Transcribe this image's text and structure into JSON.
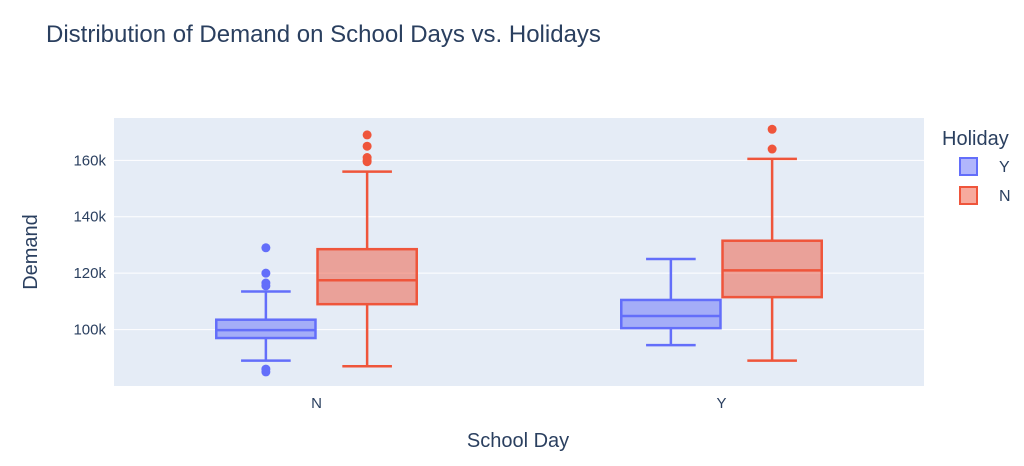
{
  "chart_data": {
    "type": "box",
    "title": "Distribution of Demand on School Days vs. Holidays",
    "xlabel": "School Day",
    "ylabel": "Demand",
    "categories": [
      "N",
      "Y"
    ],
    "ylim": [
      80000,
      175000
    ],
    "yticks": [
      100000,
      120000,
      140000,
      160000
    ],
    "ytick_labels": [
      "100k",
      "120k",
      "140k",
      "160k"
    ],
    "grid": true,
    "legend": {
      "title": "Holiday",
      "placement": "right"
    },
    "series": [
      {
        "name": "Y",
        "color": "#636efa",
        "boxes": [
          {
            "category": "N",
            "min": 89000,
            "q1": 97000,
            "median": 99800,
            "q3": 103500,
            "max": 113500,
            "outliers": [
              85000,
              86000,
              115500,
              116500,
              120000,
              129000
            ]
          },
          {
            "category": "Y",
            "min": 94500,
            "q1": 100500,
            "median": 104800,
            "q3": 110500,
            "max": 125000,
            "outliers": []
          }
        ]
      },
      {
        "name": "N",
        "color": "#ef553b",
        "boxes": [
          {
            "category": "N",
            "min": 87000,
            "q1": 109000,
            "median": 117500,
            "q3": 128500,
            "max": 156000,
            "outliers": [
              159500,
              160000,
              161000,
              165000,
              169000
            ]
          },
          {
            "category": "Y",
            "min": 89000,
            "q1": 111500,
            "median": 121000,
            "q3": 131500,
            "max": 160500,
            "outliers": [
              164000,
              171000
            ]
          }
        ]
      }
    ]
  }
}
